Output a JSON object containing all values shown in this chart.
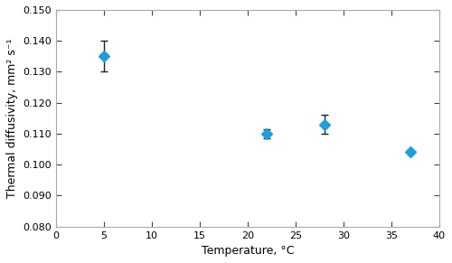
{
  "x": [
    5,
    22,
    28,
    37
  ],
  "y": [
    0.135,
    0.11,
    0.113,
    0.104
  ],
  "yerr": [
    0.005,
    0.0015,
    0.003,
    0.0
  ],
  "marker": "D",
  "marker_color": "#1E9FD8",
  "marker_size": 6,
  "ecolor": "#222222",
  "capsize": 3,
  "xlabel": "Temperature, °C",
  "ylabel": "Thermal diffusivity, mm² s⁻¹",
  "xlim": [
    0,
    40
  ],
  "ylim": [
    0.08,
    0.15
  ],
  "xticks": [
    0,
    5,
    10,
    15,
    20,
    25,
    30,
    35,
    40
  ],
  "yticks": [
    0.08,
    0.09,
    0.1,
    0.11,
    0.12,
    0.13,
    0.14,
    0.15
  ],
  "background_color": "#ffffff",
  "spine_color": "#aaaaaa",
  "tick_color": "#444444",
  "label_fontsize": 9,
  "tick_fontsize": 8
}
